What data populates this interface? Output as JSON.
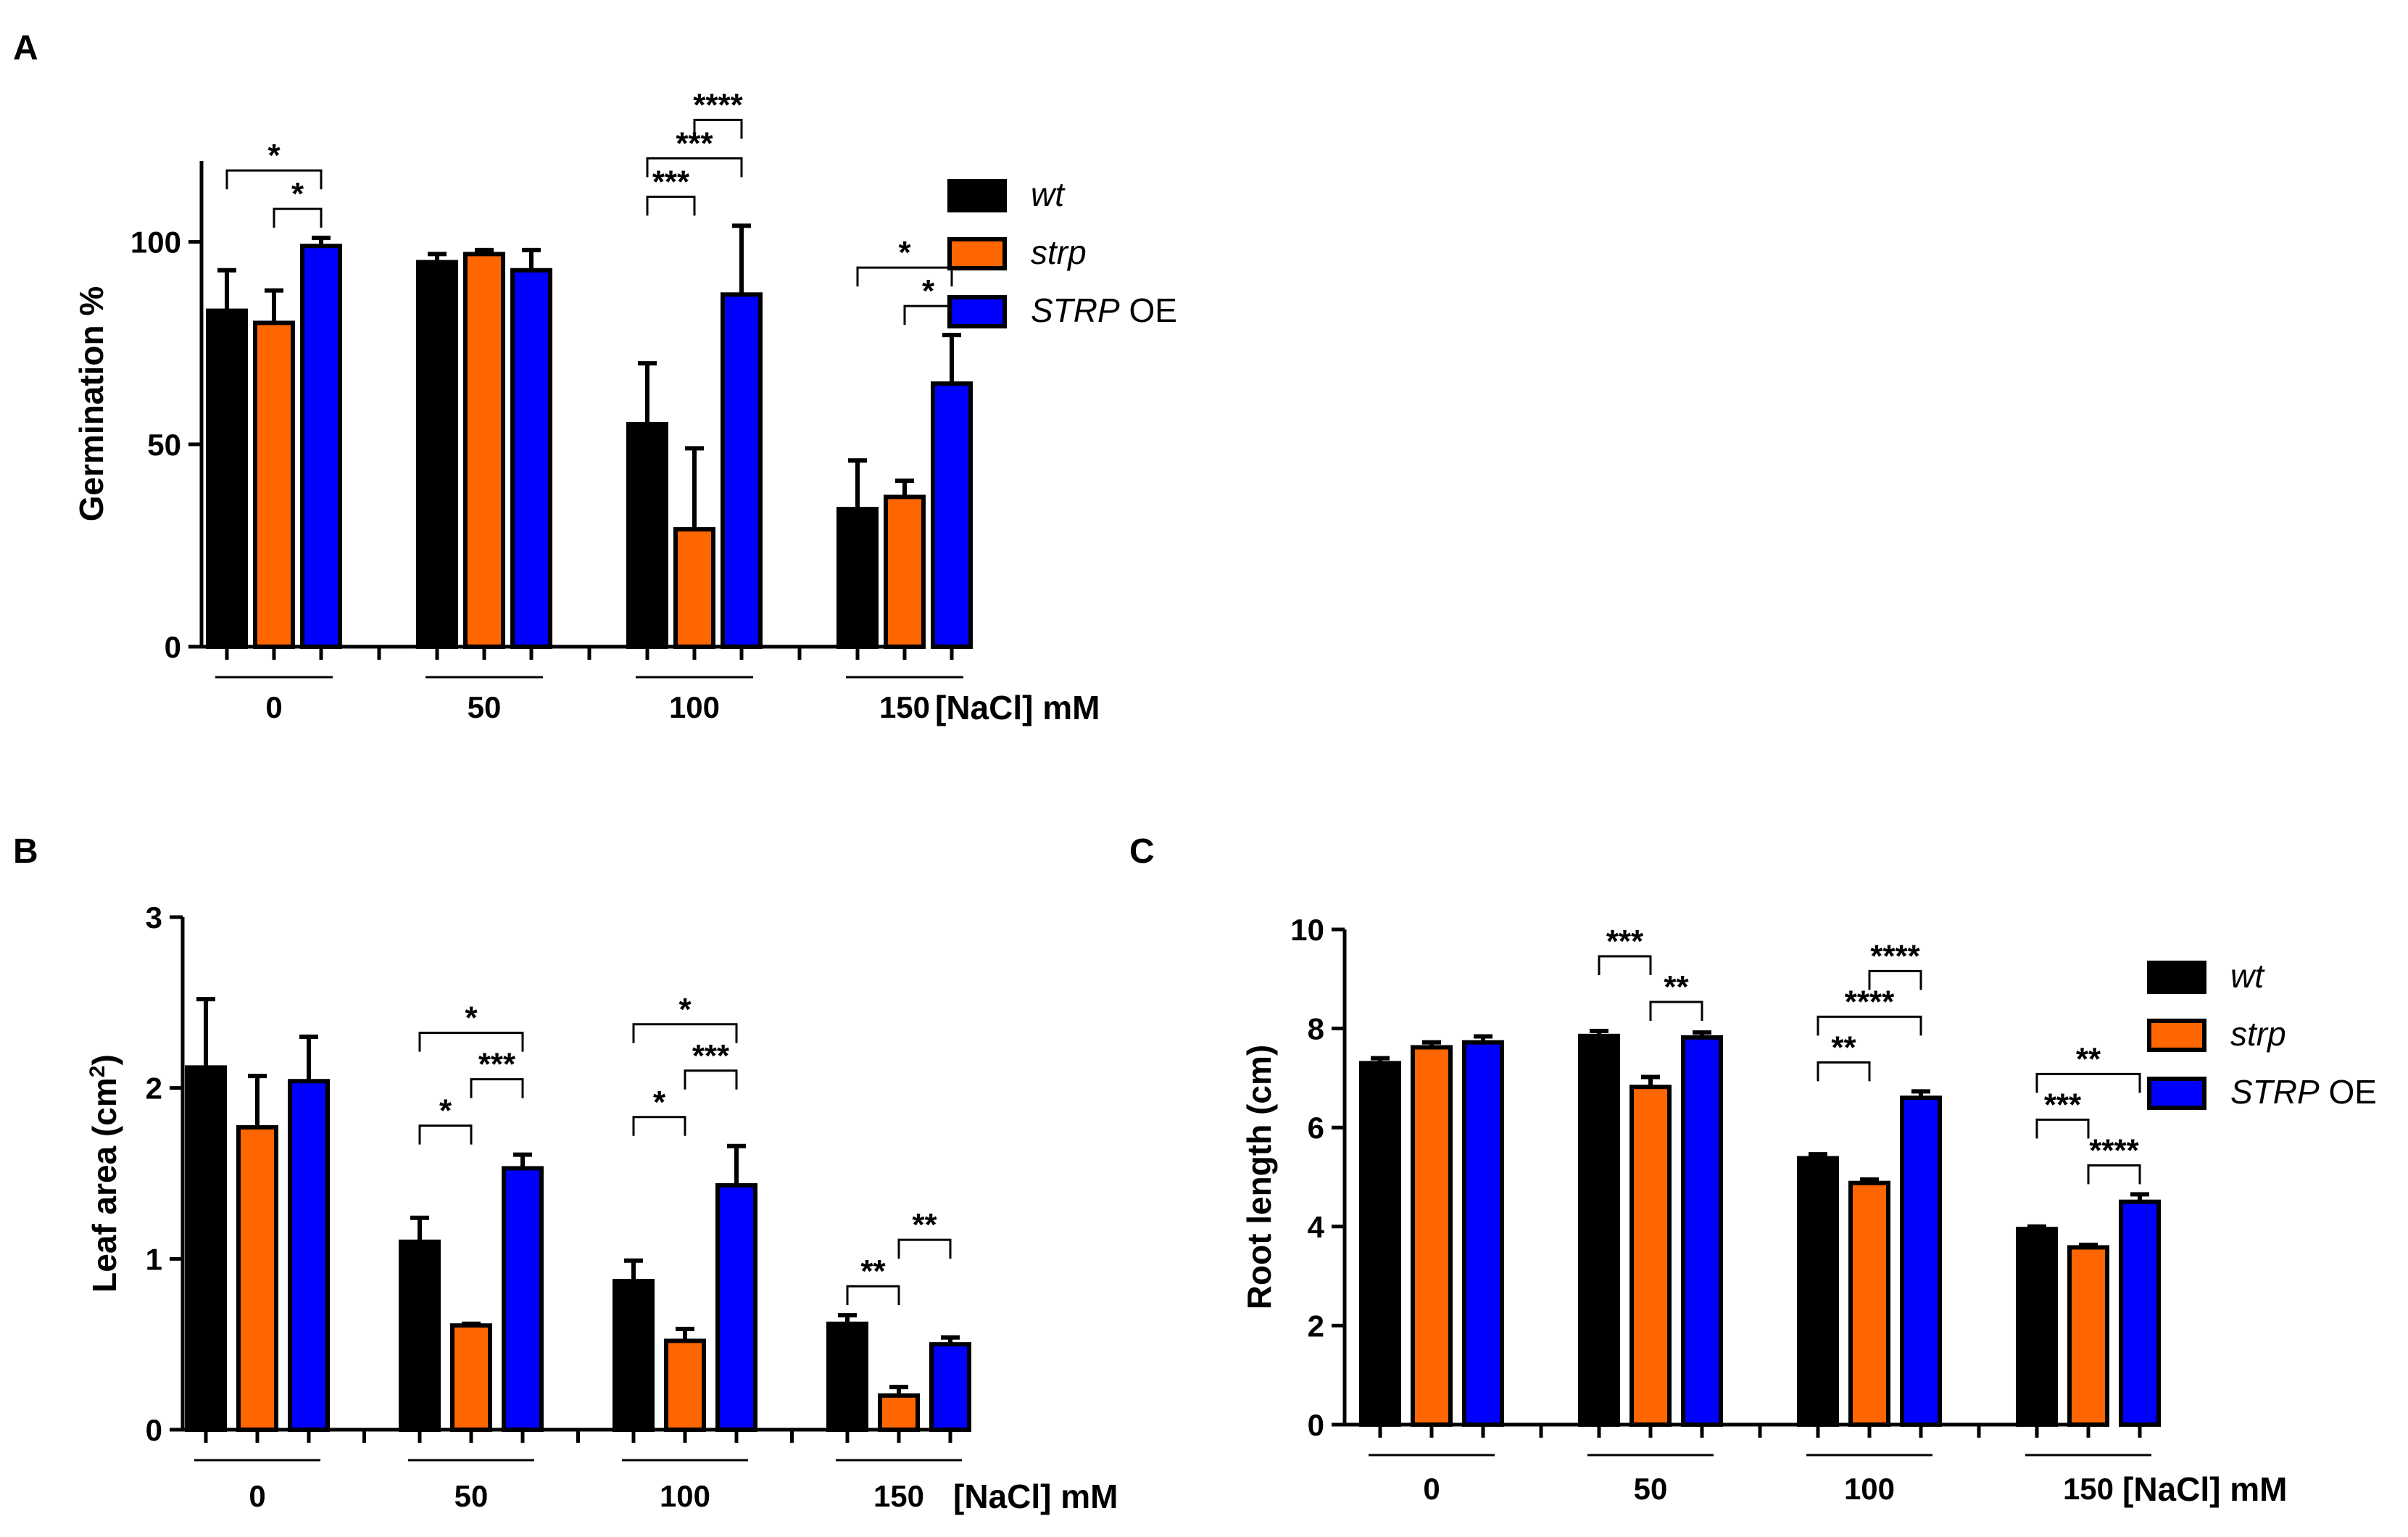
{
  "colors": {
    "wt": "#000000",
    "strp": "#ff6600",
    "oe": "#0000ff",
    "edge": "#000000"
  },
  "chart_data": [
    {
      "panel": "A",
      "type": "bar",
      "ylabel": "Germination %",
      "xlabel": "[NaCl] mM",
      "ylim": [
        0,
        120
      ],
      "yticks": [
        "0",
        "50",
        "100"
      ],
      "categories": [
        "0",
        "50",
        "100",
        "150"
      ],
      "series": [
        {
          "name": "wt",
          "values": [
            83,
            95,
            55,
            34
          ],
          "errors": [
            10,
            2,
            15,
            12
          ]
        },
        {
          "name": "strp",
          "values": [
            80,
            97,
            29,
            37
          ],
          "errors": [
            8,
            1,
            20,
            4
          ]
        },
        {
          "name": "STRP OE",
          "values": [
            99,
            93,
            87,
            65
          ],
          "errors": [
            2,
            5,
            17,
            12
          ]
        }
      ],
      "significance": [
        {
          "group": 0,
          "from": 0,
          "to": 2,
          "label": "*",
          "level": 0
        },
        {
          "group": 0,
          "from": 1,
          "to": 2,
          "label": "*",
          "level": 1
        },
        {
          "group": 2,
          "from": 1,
          "to": 2,
          "label": "****",
          "level": 0
        },
        {
          "group": 2,
          "from": 0,
          "to": 2,
          "label": "***",
          "level": 1
        },
        {
          "group": 2,
          "from": 0,
          "to": 1,
          "label": "***",
          "level": 2
        },
        {
          "group": 3,
          "from": 0,
          "to": 2,
          "label": "*",
          "level": 0
        },
        {
          "group": 3,
          "from": 1,
          "to": 2,
          "label": "*",
          "level": 1
        }
      ],
      "legend": [
        {
          "label": "wt",
          "italic": "wt",
          "plain": ""
        },
        {
          "label": "strp",
          "italic": "strp",
          "plain": ""
        },
        {
          "label": "STRP OE",
          "italic": "STRP",
          "plain": " OE"
        }
      ]
    },
    {
      "panel": "B",
      "type": "bar",
      "ylabel": "Leaf area (cm",
      "ylabel_sup": "2",
      "ylabel_end": ")",
      "xlabel": "[NaCl] mM",
      "ylim": [
        0,
        3
      ],
      "yticks": [
        "0",
        "1",
        "2",
        "3"
      ],
      "categories": [
        "0",
        "50",
        "100",
        "150"
      ],
      "series": [
        {
          "name": "wt",
          "values": [
            2.12,
            1.1,
            0.87,
            0.62
          ],
          "errors": [
            0.4,
            0.14,
            0.12,
            0.05
          ]
        },
        {
          "name": "strp",
          "values": [
            1.77,
            0.61,
            0.52,
            0.2
          ],
          "errors": [
            0.3,
            0.01,
            0.07,
            0.05
          ]
        },
        {
          "name": "STRP OE",
          "values": [
            2.04,
            1.53,
            1.43,
            0.5
          ],
          "errors": [
            0.26,
            0.08,
            0.23,
            0.04
          ]
        }
      ],
      "significance": [
        {
          "group": 1,
          "from": 0,
          "to": 2,
          "label": "*",
          "level": 0
        },
        {
          "group": 1,
          "from": 1,
          "to": 2,
          "label": "***",
          "level": 1
        },
        {
          "group": 1,
          "from": 0,
          "to": 1,
          "label": "*",
          "level": 2
        },
        {
          "group": 2,
          "from": 0,
          "to": 2,
          "label": "*",
          "level": 0
        },
        {
          "group": 2,
          "from": 1,
          "to": 2,
          "label": "***",
          "level": 1
        },
        {
          "group": 2,
          "from": 0,
          "to": 1,
          "label": "*",
          "level": 2
        },
        {
          "group": 3,
          "from": 1,
          "to": 2,
          "label": "**",
          "level": 0
        },
        {
          "group": 3,
          "from": 0,
          "to": 1,
          "label": "**",
          "level": 1
        }
      ]
    },
    {
      "panel": "C",
      "type": "bar",
      "ylabel": "Root length (cm)",
      "xlabel": "[NaCl] mM",
      "ylim": [
        0,
        10
      ],
      "yticks": [
        "0",
        "2",
        "4",
        "6",
        "8",
        "10"
      ],
      "categories": [
        "0",
        "50",
        "100",
        "150"
      ],
      "series": [
        {
          "name": "wt",
          "values": [
            7.3,
            7.85,
            5.38,
            3.95
          ],
          "errors": [
            0.1,
            0.1,
            0.08,
            0.05
          ]
        },
        {
          "name": "strp",
          "values": [
            7.62,
            6.82,
            4.88,
            3.58
          ],
          "errors": [
            0.1,
            0.2,
            0.07,
            0.05
          ]
        },
        {
          "name": "STRP OE",
          "values": [
            7.72,
            7.82,
            6.6,
            4.5
          ],
          "errors": [
            0.12,
            0.1,
            0.13,
            0.15
          ]
        }
      ],
      "significance": [
        {
          "group": 1,
          "from": 0,
          "to": 1,
          "label": "***",
          "level": 0
        },
        {
          "group": 1,
          "from": 1,
          "to": 2,
          "label": "**",
          "level": 1
        },
        {
          "group": 2,
          "from": 1,
          "to": 2,
          "label": "****",
          "level": 0
        },
        {
          "group": 2,
          "from": 0,
          "to": 2,
          "label": "****",
          "level": 1
        },
        {
          "group": 2,
          "from": 0,
          "to": 1,
          "label": "**",
          "level": 2
        },
        {
          "group": 3,
          "from": 0,
          "to": 2,
          "label": "**",
          "level": 0
        },
        {
          "group": 3,
          "from": 0,
          "to": 1,
          "label": "***",
          "level": 1
        },
        {
          "group": 3,
          "from": 1,
          "to": 2,
          "label": "****",
          "level": 2
        }
      ],
      "legend": [
        {
          "label": "wt",
          "italic": "wt",
          "plain": ""
        },
        {
          "label": "strp",
          "italic": "strp",
          "plain": ""
        },
        {
          "label": "STRP OE",
          "italic": "STRP",
          "plain": " OE"
        }
      ]
    }
  ]
}
